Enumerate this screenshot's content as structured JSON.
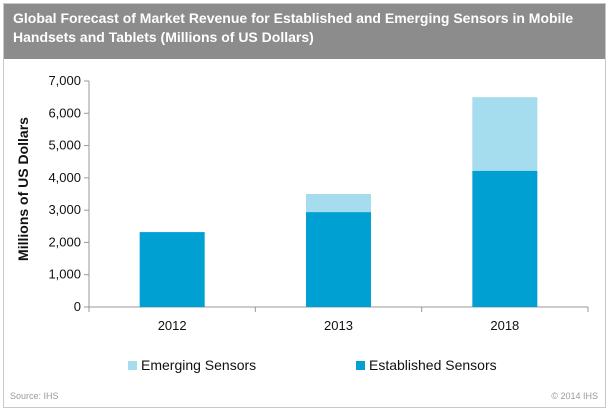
{
  "header": {
    "title": "Global Forecast of Market Revenue for Established and Emerging Sensors in Mobile Handsets and Tablets (Millions of US Dollars)"
  },
  "footer": {
    "source": "Source: IHS",
    "copyright": "© 2014 IHS"
  },
  "colors": {
    "header_bg": "#8c8c8c",
    "established": "#00a0d2",
    "emerging": "#a5dcee",
    "axis": "#999999"
  },
  "chart_data": {
    "type": "bar",
    "stacked": true,
    "title": "Global Forecast of Market Revenue for Established and Emerging Sensors in Mobile Handsets and Tablets (Millions of US Dollars)",
    "xlabel": "",
    "ylabel": "Millions of US Dollars",
    "ylim": [
      0,
      7000
    ],
    "yticks": [
      0,
      1000,
      2000,
      3000,
      4000,
      5000,
      6000,
      7000
    ],
    "ytick_labels": [
      "0",
      "1,000",
      "2,000",
      "3,000",
      "4,000",
      "5,000",
      "6,000",
      "7,000"
    ],
    "categories": [
      "2012",
      "2013",
      "2018"
    ],
    "series": [
      {
        "name": "Established Sensors",
        "values": [
          2320,
          2940,
          4220
        ]
      },
      {
        "name": "Emerging Sensors",
        "values": [
          0,
          560,
          2280
        ]
      }
    ],
    "legend": {
      "placement": "bottom",
      "order": [
        "Emerging Sensors",
        "Established Sensors"
      ]
    },
    "grid": false
  }
}
